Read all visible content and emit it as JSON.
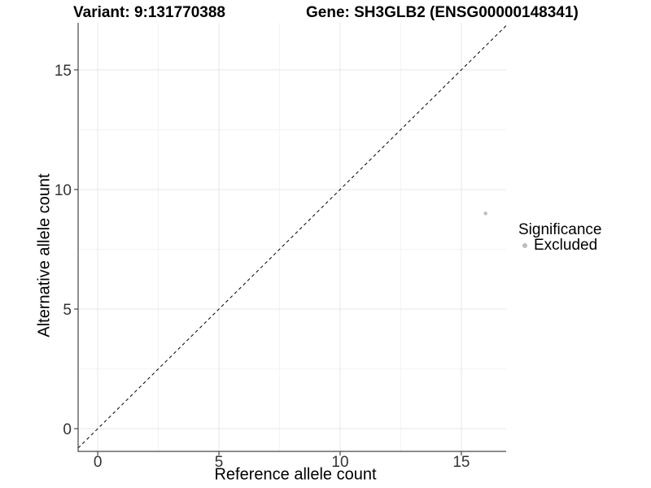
{
  "header": {
    "variant_title": "Variant: 9:131770388",
    "gene_title": "Gene: SH3GLB2 (ENSG00000148341)"
  },
  "axes": {
    "x": {
      "label": "Reference allele count"
    },
    "y": {
      "label": "Alternative allele count"
    }
  },
  "legend": {
    "title": "Significance",
    "entries": [
      {
        "label": "Excluded",
        "swatch_color": "#bdbdbd"
      }
    ]
  },
  "colors": {
    "background": "#ffffff",
    "axis_line": "#474747",
    "tick_label": "#333333",
    "grid_major": "#e7e7e7",
    "grid_minor": "#f3f3f3",
    "dashed_line": "#000000"
  },
  "chart_data": {
    "type": "scatter",
    "title": "Variant: 9:131770388   Gene: SH3GLB2 (ENSG00000148341)",
    "xlabel": "Reference allele count",
    "ylabel": "Alternative allele count",
    "x_ticks": [
      0,
      5,
      10,
      15
    ],
    "y_ticks": [
      0,
      5,
      10,
      15
    ],
    "x_minor_ticks": [
      2.5,
      7.5,
      12.5
    ],
    "y_minor_ticks": [
      2.5,
      7.5,
      12.5
    ],
    "xlim": [
      -0.81,
      16.85
    ],
    "ylim": [
      -0.95,
      16.97
    ],
    "grid": true,
    "legend_position": "right",
    "series": [
      {
        "name": "Excluded",
        "color": "#bdbdbd",
        "marker_radius": 2.2,
        "points": [
          {
            "x": 16,
            "y": 9
          }
        ]
      }
    ],
    "reference_line": {
      "type": "identity",
      "equation": "y = x",
      "style": "dashed",
      "color": "#000000"
    }
  }
}
